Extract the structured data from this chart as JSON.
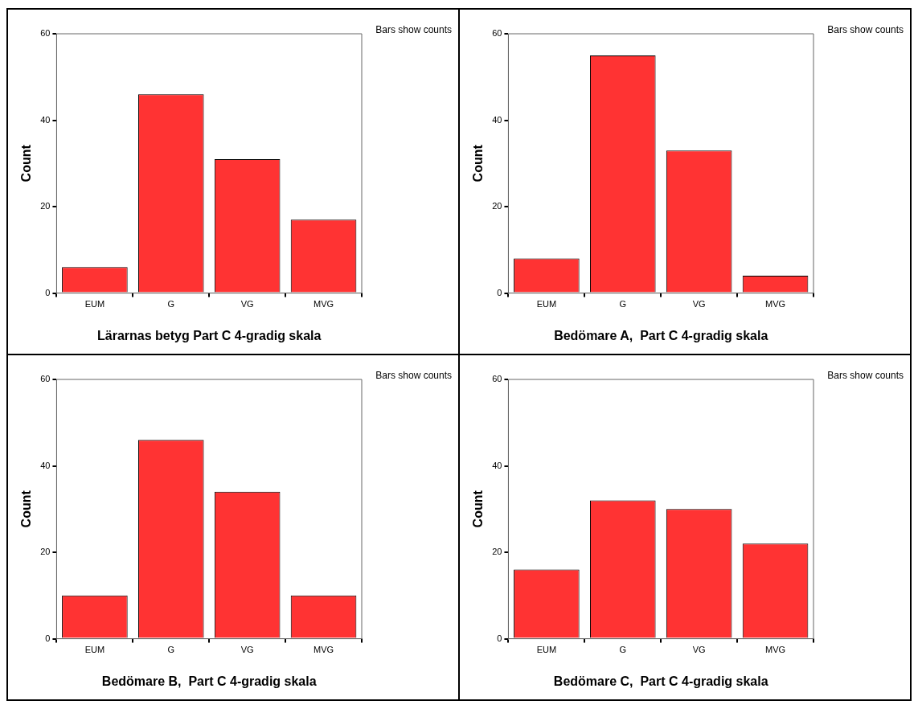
{
  "chart_data": [
    {
      "type": "bar",
      "xlabel": "Lärarnas betyg Part C 4-gradig skala",
      "ylabel": "Count",
      "categories": [
        "EUM",
        "G",
        "VG",
        "MVG"
      ],
      "values": [
        6,
        46,
        31,
        17
      ],
      "color": "#ff3333",
      "ylim": [
        0,
        60
      ],
      "yticks": [
        0,
        20,
        40,
        60
      ],
      "annotations": [
        "Bars show counts"
      ]
    },
    {
      "type": "bar",
      "xlabel": "Bedömare A,  Part C 4-gradig skala",
      "ylabel": "Count",
      "categories": [
        "EUM",
        "G",
        "VG",
        "MVG"
      ],
      "values": [
        8,
        55,
        33,
        4
      ],
      "color": "#ff3333",
      "ylim": [
        0,
        60
      ],
      "yticks": [
        0,
        20,
        40,
        60
      ],
      "annotations": [
        "Bars show counts"
      ]
    },
    {
      "type": "bar",
      "xlabel": "Bedömare B,  Part C 4-gradig skala",
      "ylabel": "Count",
      "categories": [
        "EUM",
        "G",
        "VG",
        "MVG"
      ],
      "values": [
        10,
        46,
        34,
        10
      ],
      "color": "#ff3333",
      "ylim": [
        0,
        60
      ],
      "yticks": [
        0,
        20,
        40,
        60
      ],
      "annotations": [
        "Bars show counts"
      ]
    },
    {
      "type": "bar",
      "xlabel": "Bedömare C,  Part C 4-gradig skala",
      "ylabel": "Count",
      "categories": [
        "EUM",
        "G",
        "VG",
        "MVG"
      ],
      "values": [
        16,
        32,
        30,
        22
      ],
      "color": "#ff3333",
      "ylim": [
        0,
        60
      ],
      "yticks": [
        0,
        20,
        40,
        60
      ],
      "annotations": [
        "Bars show counts"
      ]
    }
  ]
}
